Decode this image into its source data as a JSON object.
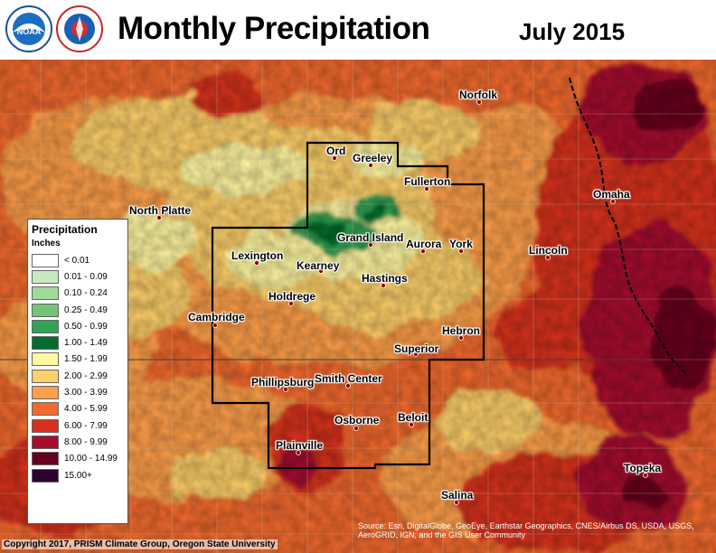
{
  "header": {
    "title": "Monthly Precipitation",
    "date": "July 2015",
    "logos": [
      "noaa-logo",
      "national-weather-service-logo"
    ]
  },
  "legend": {
    "title": "Precipitation",
    "units": "Inches",
    "classes": [
      {
        "label": "< 0.01",
        "color": "#ffffff"
      },
      {
        "label": "0.01 - 0.09",
        "color": "#c7e9c0"
      },
      {
        "label": "0.10 - 0.24",
        "color": "#a1d99b"
      },
      {
        "label": "0.25 - 0.49",
        "color": "#74c476"
      },
      {
        "label": "0.50 - 0.99",
        "color": "#31a354"
      },
      {
        "label": "1.00 - 1.49",
        "color": "#006d2c"
      },
      {
        "label": "1.50 - 1.99",
        "color": "#fff7a0"
      },
      {
        "label": "2.00 - 2.99",
        "color": "#fed06a"
      },
      {
        "label": "3.00 - 3.99",
        "color": "#fd9e48"
      },
      {
        "label": "4.00 - 5.99",
        "color": "#f26a2e"
      },
      {
        "label": "6.00 - 7.99",
        "color": "#d7301f"
      },
      {
        "label": "8.00 - 9.99",
        "color": "#a50f2d"
      },
      {
        "label": "10.00 - 14.99",
        "color": "#67001f"
      },
      {
        "label": "15.00+",
        "color": "#2d0430"
      }
    ]
  },
  "cities": [
    {
      "name": "Norfolk"
    },
    {
      "name": "Ord"
    },
    {
      "name": "Greeley"
    },
    {
      "name": "Fullerton"
    },
    {
      "name": "North Platte"
    },
    {
      "name": "Omaha"
    },
    {
      "name": "Grand Island"
    },
    {
      "name": "Aurora"
    },
    {
      "name": "York"
    },
    {
      "name": "Lexington"
    },
    {
      "name": "Kearney"
    },
    {
      "name": "Lincoln"
    },
    {
      "name": "Hastings"
    },
    {
      "name": "Holdrege"
    },
    {
      "name": "Cambridge"
    },
    {
      "name": "Hebron"
    },
    {
      "name": "Superior"
    },
    {
      "name": "Phillipsburg"
    },
    {
      "name": "Smith Center"
    },
    {
      "name": "Osborne"
    },
    {
      "name": "Beloit"
    },
    {
      "name": "Plainville"
    },
    {
      "name": "Topeka"
    },
    {
      "name": "Salina"
    }
  ],
  "footer": {
    "credit": "Copyright 2017, PRISM Climate Group, Oregon State University",
    "sources": "Source: Esri, DigitalGlobe, GeoEye, Earthstar Geographics, CNES/Airbus DS, USDA, USGS, AeroGRID, IGN, and the GIS User Community"
  }
}
